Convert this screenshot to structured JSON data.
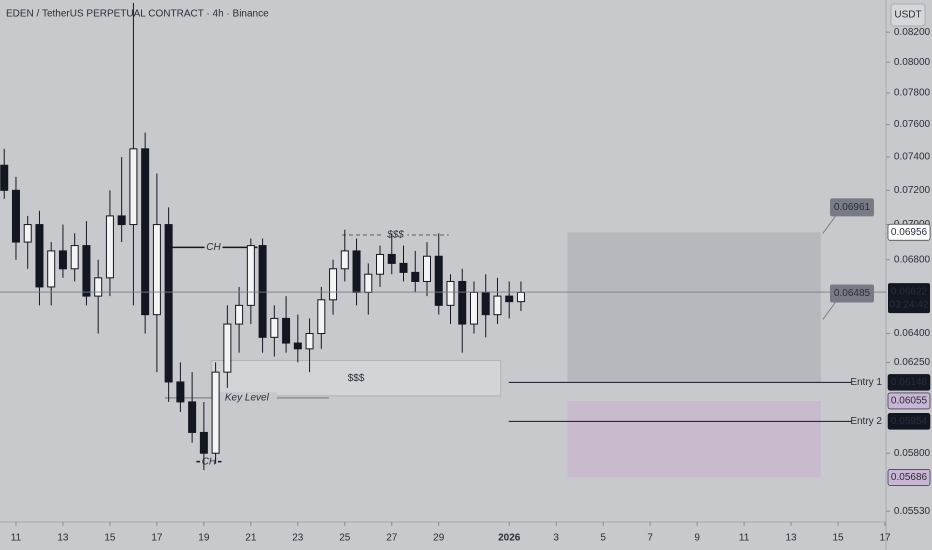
{
  "chart_data": {
    "type": "candlestick",
    "title": "EDEN / TetherUS PERPETUAL CONTRACT · 4h · Binance",
    "currency": "USDT",
    "log_scale": true,
    "up_color": "#f4f4f4",
    "down_color": "#131722",
    "x": [
      10.5,
      11,
      11.5,
      12,
      12.5,
      13,
      13.5,
      14,
      14.5,
      15,
      15.5,
      16,
      16.5,
      17,
      17.5,
      18,
      18.5,
      19,
      19.5,
      20,
      20.5,
      21,
      21.5,
      22,
      22.5,
      23,
      23.5,
      24,
      24.5,
      25,
      25.5,
      26,
      26.5,
      27,
      27.5,
      28,
      28.5,
      29,
      29.5,
      30,
      30.5,
      31,
      31.5,
      32,
      32.5
    ],
    "open": [
      0.0735,
      0.072,
      0.069,
      0.07,
      0.0665,
      0.0685,
      0.0675,
      0.0688,
      0.066,
      0.067,
      0.0705,
      0.07,
      0.0745,
      0.065,
      0.07,
      0.0615,
      0.0605,
      0.059,
      0.058,
      0.062,
      0.0645,
      0.0655,
      0.0688,
      0.0638,
      0.0648,
      0.0635,
      0.0632,
      0.064,
      0.0658,
      0.0675,
      0.0685,
      0.0662,
      0.0672,
      0.0683,
      0.0678,
      0.0673,
      0.0668,
      0.0682,
      0.0655,
      0.0668,
      0.0645,
      0.0662,
      0.065,
      0.066,
      0.0657
    ],
    "high": [
      0.0745,
      0.0728,
      0.0705,
      0.0708,
      0.069,
      0.07,
      0.0695,
      0.0702,
      0.068,
      0.072,
      0.074,
      0.084,
      0.0755,
      0.073,
      0.071,
      0.0625,
      0.062,
      0.0605,
      0.0625,
      0.0655,
      0.0665,
      0.0692,
      0.0692,
      0.0655,
      0.066,
      0.065,
      0.0648,
      0.0665,
      0.068,
      0.0697,
      0.0692,
      0.0678,
      0.0688,
      0.0695,
      0.0688,
      0.0685,
      0.069,
      0.0695,
      0.0672,
      0.0675,
      0.0668,
      0.0672,
      0.067,
      0.0668,
      0.0668
    ],
    "low": [
      0.0715,
      0.068,
      0.0675,
      0.0655,
      0.0655,
      0.067,
      0.0668,
      0.0655,
      0.064,
      0.066,
      0.069,
      0.0655,
      0.064,
      0.062,
      0.0605,
      0.06,
      0.0585,
      0.0572,
      0.0575,
      0.0612,
      0.063,
      0.0645,
      0.063,
      0.0628,
      0.063,
      0.0625,
      0.062,
      0.0632,
      0.065,
      0.0668,
      0.0655,
      0.065,
      0.0665,
      0.0672,
      0.0668,
      0.0662,
      0.066,
      0.065,
      0.0645,
      0.063,
      0.064,
      0.0638,
      0.0645,
      0.0648,
      0.0652
    ],
    "close": [
      0.072,
      0.069,
      0.07,
      0.0665,
      0.0685,
      0.0675,
      0.0688,
      0.066,
      0.067,
      0.0705,
      0.07,
      0.0745,
      0.065,
      0.07,
      0.0615,
      0.0605,
      0.059,
      0.058,
      0.062,
      0.0645,
      0.0655,
      0.0688,
      0.0638,
      0.0648,
      0.0635,
      0.0632,
      0.064,
      0.0658,
      0.0675,
      0.0685,
      0.0662,
      0.0672,
      0.0683,
      0.0678,
      0.0673,
      0.0668,
      0.0682,
      0.0655,
      0.0668,
      0.0645,
      0.0662,
      0.065,
      0.066,
      0.0657,
      0.0662
    ],
    "xlim": [
      10.32,
      48
    ],
    "xticks": [
      11,
      13,
      15,
      17,
      19,
      21,
      23,
      25,
      27,
      29,
      {
        "value": 32,
        "label": "2026"
      },
      {
        "value": 34,
        "label": "3"
      },
      {
        "value": 36,
        "label": "5"
      },
      {
        "value": 38,
        "label": "7"
      },
      {
        "value": 40,
        "label": "9"
      },
      {
        "value": 42,
        "label": "11"
      },
      {
        "value": 44,
        "label": "13"
      },
      {
        "value": 46,
        "label": "15"
      },
      {
        "value": 48,
        "label": "17"
      }
    ],
    "ylim": [
      0.0549,
      0.0842
    ],
    "yticks": [
      {
        "value": 0.082,
        "label": "0.08200"
      },
      {
        "value": 0.08,
        "label": "0.08000"
      },
      {
        "value": 0.078,
        "label": "0.07800"
      },
      {
        "value": 0.076,
        "label": "0.07600"
      },
      {
        "value": 0.074,
        "label": "0.07400"
      },
      {
        "value": 0.072,
        "label": "0.07200"
      },
      {
        "value": 0.07,
        "label": "0.07000"
      },
      {
        "value": 0.068,
        "label": "0.06800"
      },
      {
        "value": 0.064,
        "label": "0.06400"
      },
      {
        "value": 0.0625,
        "label": "0.06250"
      },
      {
        "value": 0.058,
        "label": "0.05800"
      },
      {
        "value": 0.0553,
        "label": "0.05530"
      }
    ],
    "current_price": {
      "value": 0.06622,
      "countdown": "03:24:42"
    },
    "price_markers": [
      {
        "value": 0.06956,
        "color": "#ffffff",
        "text_color": "#131722"
      },
      {
        "value": 0.06148,
        "color": "#131722",
        "text_color": "#ffffff"
      },
      {
        "value": 0.06055,
        "color": "#c9b6d4",
        "text_color": "#131722"
      },
      {
        "value": 0.05954,
        "color": "#131722",
        "text_color": "#ffffff"
      },
      {
        "value": 0.05686,
        "color": "#c9b6d4",
        "text_color": "#131722"
      }
    ],
    "zones": [
      {
        "x": [
          34.48,
          45.27
        ],
        "y": [
          0.06148,
          0.06956
        ],
        "color": "#b4b5ba"
      },
      {
        "x": [
          34.48,
          45.27
        ],
        "y": [
          0.05686,
          0.06055
        ],
        "color": "#c8b9ce"
      }
    ],
    "levels": [
      {
        "label": "Entry 1",
        "value": 0.06148,
        "x": 31.98
      },
      {
        "label": "Entry 2",
        "value": 0.05954,
        "x": 31.98
      }
    ],
    "callouts": [
      0.06961,
      0.06485
    ],
    "drawings": [
      {
        "text": "CH",
        "x": [
          17.54,
          21.28
        ],
        "y": 0.0687,
        "style": "solid"
      },
      {
        "text": "CH",
        "x": [
          18.68,
          19.75
        ],
        "y": 0.0576,
        "style": "solid"
      },
      {
        "text": "$$$",
        "x": [
          24.88,
          29.43
        ],
        "y": 0.0694,
        "style": "dashed"
      },
      {
        "text": "Key Level",
        "x": [
          17.33,
          24.33
        ],
        "y": 0.0607,
        "style": "solid"
      }
    ],
    "liquidity_zone": {
      "text": "$$$",
      "x": [
        19.32,
        31.64
      ],
      "y": [
        0.0608,
        0.0626
      ]
    }
  }
}
